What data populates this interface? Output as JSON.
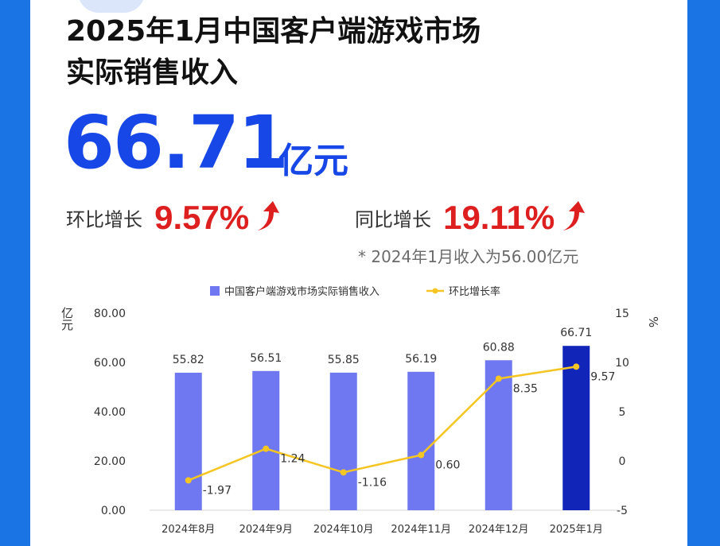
{
  "header": {
    "title_line1": "2025年1月中国客户端游戏市场",
    "title_line2": "实际销售收入"
  },
  "headline": {
    "value": "66.71",
    "unit": "亿元"
  },
  "stats": {
    "mom_label": "环比增长",
    "mom_value": "9.57%",
    "yoy_label": "同比增长",
    "yoy_value": "19.11%",
    "arrow_icon": "up-arrow-icon",
    "footnote": "* 2024年1月收入为56.00亿元"
  },
  "colors": {
    "page_background": "#1b74e4",
    "headline_blue": "#1747e6",
    "growth_red": "#de1f1f",
    "bar": "#6f78f0",
    "bar_highlight": "#1126b8",
    "line": "#f5c623"
  },
  "chart_data": {
    "type": "bar",
    "categories": [
      "2024年8月",
      "2024年9月",
      "2024年10月",
      "2024年11月",
      "2024年12月",
      "2025年1月"
    ],
    "series": [
      {
        "name": "中国客户端游戏市场实际销售收入",
        "type": "bar",
        "axis": "left",
        "values": [
          55.82,
          56.51,
          55.85,
          56.19,
          60.88,
          66.71
        ],
        "labels": [
          "55.82",
          "56.51",
          "55.85",
          "56.19",
          "60.88",
          "66.71"
        ]
      },
      {
        "name": "环比增长率",
        "type": "line",
        "axis": "right",
        "values": [
          -1.97,
          1.24,
          -1.16,
          0.6,
          8.35,
          9.57
        ],
        "labels": [
          "-1.97",
          "1.24",
          "-1.16",
          "0.60",
          "8.35",
          "9.57"
        ]
      }
    ],
    "y_left": {
      "label": "亿元",
      "range": [
        0,
        80
      ],
      "ticks": [
        "0.00",
        "20.00",
        "40.00",
        "60.00",
        "80.00"
      ],
      "tick_values": [
        0,
        20,
        40,
        60,
        80
      ]
    },
    "y_right": {
      "label": "%",
      "range": [
        -5,
        15
      ],
      "ticks": [
        "-5",
        "0",
        "5",
        "10",
        "15"
      ],
      "tick_values": [
        -5,
        0,
        5,
        10,
        15
      ]
    },
    "grid": false,
    "legend_position": "top"
  }
}
